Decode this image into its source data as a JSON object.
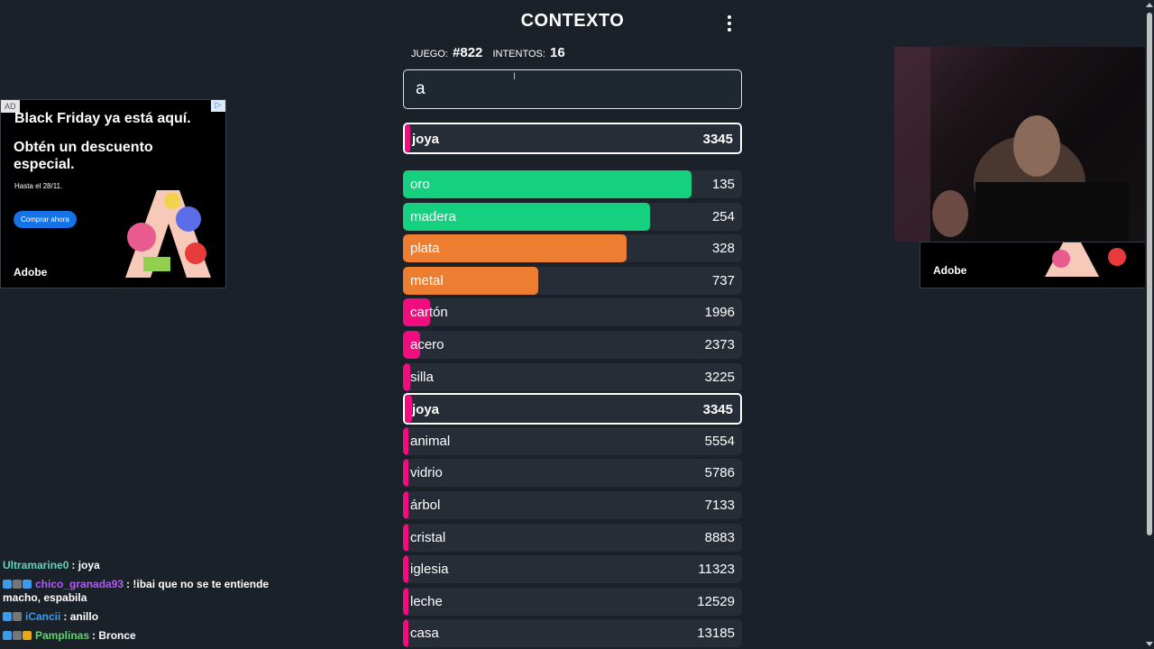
{
  "header": {
    "title": "CONTEXTO"
  },
  "stats": {
    "game_label": "JUEGO:",
    "game_value": "#822",
    "attempts_label": "INTENTOS:",
    "attempts_value": "16"
  },
  "guess_input": {
    "value": "a"
  },
  "last_guess": {
    "word": "joya",
    "rank": "3345"
  },
  "guesses": [
    {
      "word": "oro",
      "rank": "135",
      "bar": 0.85,
      "color": "#14d07f"
    },
    {
      "word": "madera",
      "rank": "254",
      "bar": 0.73,
      "color": "#14d07f"
    },
    {
      "word": "plata",
      "rank": "328",
      "bar": 0.66,
      "color": "#ed7d31"
    },
    {
      "word": "metal",
      "rank": "737",
      "bar": 0.4,
      "color": "#ed7d31"
    },
    {
      "word": "cartón",
      "rank": "1996",
      "bar": 0.08,
      "color": "#ef0d7f"
    },
    {
      "word": "acero",
      "rank": "2373",
      "bar": 0.05,
      "color": "#ef0d7f"
    },
    {
      "word": "silla",
      "rank": "3225",
      "bar": 0.02,
      "color": "#ef0d7f"
    },
    {
      "word": "joya",
      "rank": "3345",
      "bar": 0.02,
      "color": "#ef0d7f",
      "current": true
    },
    {
      "word": "animal",
      "rank": "5554",
      "bar": 0.015,
      "color": "#ef0d7f"
    },
    {
      "word": "vidrio",
      "rank": "5786",
      "bar": 0.015,
      "color": "#ef0d7f"
    },
    {
      "word": "árbol",
      "rank": "7133",
      "bar": 0.015,
      "color": "#ef0d7f"
    },
    {
      "word": "cristal",
      "rank": "8883",
      "bar": 0.015,
      "color": "#ef0d7f"
    },
    {
      "word": "iglesia",
      "rank": "11323",
      "bar": 0.015,
      "color": "#ef0d7f"
    },
    {
      "word": "leche",
      "rank": "12529",
      "bar": 0.015,
      "color": "#ef0d7f"
    },
    {
      "word": "casa",
      "rank": "13185",
      "bar": 0.015,
      "color": "#ef0d7f"
    }
  ],
  "ad": {
    "tag": "AD",
    "headline": "Black Friday ya está aquí.",
    "offer": "Obtén un descuento especial.",
    "date": "Hasta el 28/11.",
    "cta": "Comprar ahora",
    "brand": "Adobe"
  },
  "chat": [
    {
      "user": "Ultramarine0",
      "color": "#5cd6b4",
      "text": ": joya",
      "badges": []
    },
    {
      "user": "chico_granada93",
      "color": "#b05cf5",
      "text": ": !ibai que no se te entiende macho, espabila",
      "badges": [
        "#3d9be9",
        "#777",
        "#3d9be9"
      ]
    },
    {
      "user": "iCancii",
      "color": "#3d9be9",
      "text": ": anillo",
      "badges": [
        "#3d9be9",
        "#777"
      ]
    },
    {
      "user": "Pamplinas",
      "color": "#5ed66c",
      "text": ": Bronce",
      "badges": [
        "#3d9be9",
        "#777",
        "#e8a817"
      ]
    }
  ]
}
